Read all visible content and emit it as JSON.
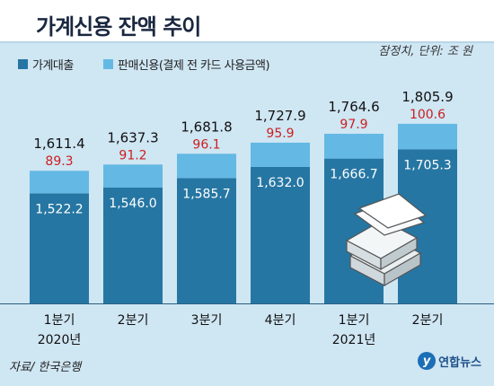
{
  "title": "가계신용 잔액 추이",
  "unit_note": "잠정치, 단위: 조 원",
  "legend": {
    "loans": "가계대출",
    "credit_sales": "판매신용(결제 전 카드 사용금액)"
  },
  "colors": {
    "loans": "#2676a3",
    "credit_sales": "#63b9e3",
    "total_label": "#111111",
    "credit_label": "#cc1f1f",
    "loan_label": "#ffffff"
  },
  "source": "자료/ 한국은행",
  "logo_text": "연합뉴스",
  "logo_mark": "y",
  "chart_data": {
    "type": "bar",
    "stacked": true,
    "categories": [
      "1분기",
      "2분기",
      "3분기",
      "4분기",
      "1분기",
      "2분기"
    ],
    "year_labels": [
      "2020년",
      "",
      "",
      "",
      "2021년",
      ""
    ],
    "series": [
      {
        "name": "가계대출",
        "values": [
          1522.2,
          1546.0,
          1585.7,
          1632.0,
          1666.7,
          1705.3
        ]
      },
      {
        "name": "판매신용(결제 전 카드 사용금액)",
        "values": [
          89.3,
          91.2,
          96.1,
          95.9,
          97.9,
          100.6
        ]
      }
    ],
    "totals": [
      1611.4,
      1637.3,
      1681.8,
      1727.9,
      1764.6,
      1805.9
    ],
    "loan_labels": [
      "1,522.2",
      "1,546.0",
      "1,585.7",
      "1,632.0",
      "1,666.7",
      "1,705.3"
    ],
    "credit_labels": [
      "89.3",
      "91.2",
      "96.1",
      "95.9",
      "97.9",
      "100.6"
    ],
    "total_labels": [
      "1,611.4",
      "1,637.3",
      "1,681.8",
      "1,727.9",
      "1,764.6",
      "1,805.9"
    ],
    "axis_break": true,
    "grid": false,
    "legend_position": "top-left"
  }
}
